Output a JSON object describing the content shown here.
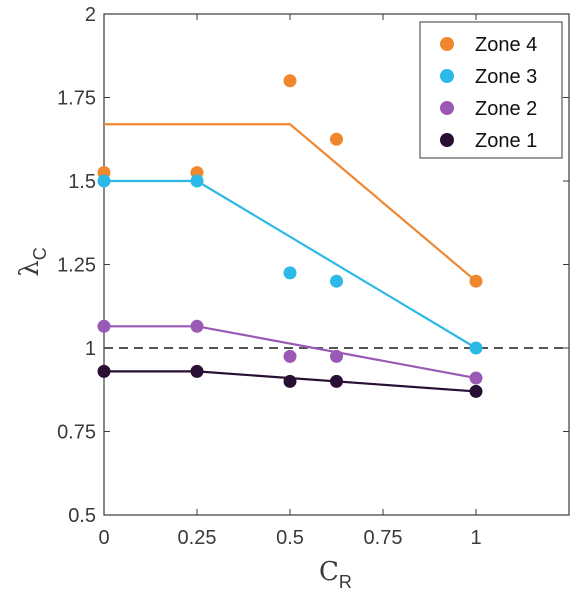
{
  "chart_data": {
    "type": "scatter",
    "xlim": [
      0,
      1.25
    ],
    "ylim": [
      0.5,
      2
    ],
    "x_ticks": [
      0,
      0.25,
      0.5,
      0.75,
      1
    ],
    "x_tick_labels": [
      "0",
      "0.25",
      "0.5",
      "0.75",
      "1"
    ],
    "y_ticks": [
      0.5,
      0.75,
      1,
      1.25,
      1.5,
      1.75,
      2
    ],
    "y_tick_labels": [
      "0.5",
      "0.75",
      "1",
      "1.25",
      "1.5",
      "1.75",
      "2"
    ],
    "xlabel": {
      "main": "C",
      "sub": "R"
    },
    "ylabel": {
      "main": "λ",
      "sub": "C"
    },
    "grid": false,
    "legend_position": "top-right",
    "reference_line": {
      "y": 1,
      "style": "dashed",
      "color": "#555555"
    },
    "series": [
      {
        "name": "Zone 4",
        "color": "#F0862E",
        "points": {
          "x": [
            0,
            0.25,
            0.5,
            0.625,
            1
          ],
          "y": [
            1.525,
            1.525,
            1.8,
            1.625,
            1.2
          ]
        },
        "fit": {
          "x": [
            0,
            0.5,
            1
          ],
          "y": [
            1.67,
            1.67,
            1.2
          ]
        }
      },
      {
        "name": "Zone 3",
        "color": "#2DB9E8",
        "points": {
          "x": [
            0,
            0.25,
            0.5,
            0.625,
            1
          ],
          "y": [
            1.5,
            1.5,
            1.225,
            1.2,
            1.0
          ]
        },
        "fit": {
          "x": [
            0,
            0.25,
            1
          ],
          "y": [
            1.5,
            1.5,
            1.0
          ]
        }
      },
      {
        "name": "Zone 2",
        "color": "#9B59B6",
        "points": {
          "x": [
            0,
            0.25,
            0.5,
            0.625,
            1
          ],
          "y": [
            1.065,
            1.065,
            0.975,
            0.975,
            0.91
          ]
        },
        "fit": {
          "x": [
            0,
            0.25,
            1
          ],
          "y": [
            1.065,
            1.065,
            0.91
          ]
        }
      },
      {
        "name": "Zone 1",
        "color": "#2A0F35",
        "points": {
          "x": [
            0,
            0.25,
            0.5,
            0.625,
            1
          ],
          "y": [
            0.93,
            0.93,
            0.9,
            0.9,
            0.87
          ]
        },
        "fit": {
          "x": [
            0,
            0.25,
            1
          ],
          "y": [
            0.93,
            0.93,
            0.87
          ]
        }
      }
    ]
  }
}
